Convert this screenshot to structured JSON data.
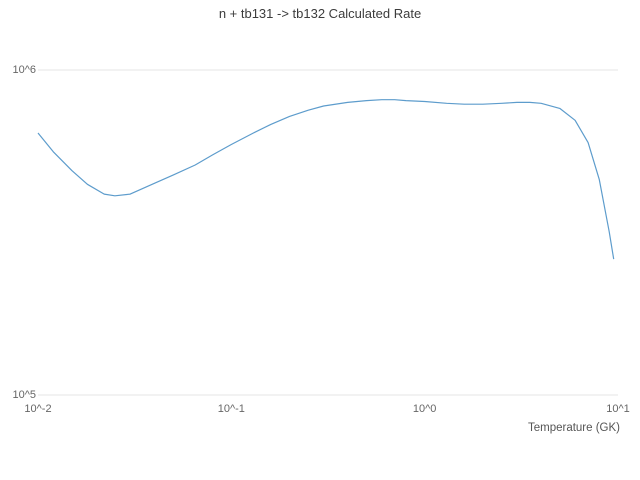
{
  "chart_data": {
    "type": "line",
    "title": "n + tb131 -> tb132 Calculated Rate",
    "xlabel": "Temperature (GK)",
    "ylabel": "",
    "xscale": "log",
    "yscale": "log",
    "xlim": [
      0.01,
      10
    ],
    "ylim": [
      100000,
      1000000
    ],
    "grid": "horizontal",
    "legend": "none",
    "line_color": "#5d9ccc",
    "grid_color": "#e5e5e5",
    "xticks": [
      {
        "value": 0.01,
        "label": "10^-2"
      },
      {
        "value": 0.1,
        "label": "10^-1"
      },
      {
        "value": 1,
        "label": "10^0"
      },
      {
        "value": 10,
        "label": "10^1"
      }
    ],
    "yticks": [
      {
        "value": 100000,
        "label": "10^5"
      },
      {
        "value": 1000000,
        "label": "10^6"
      }
    ],
    "series": [
      {
        "name": "calculated-rate",
        "x": [
          0.01,
          0.012,
          0.015,
          0.018,
          0.022,
          0.025,
          0.03,
          0.04,
          0.05,
          0.065,
          0.08,
          0.1,
          0.13,
          0.16,
          0.2,
          0.25,
          0.3,
          0.4,
          0.5,
          0.6,
          0.7,
          0.8,
          1.0,
          1.3,
          1.6,
          2.0,
          2.5,
          3.0,
          3.5,
          4.0,
          5.0,
          6.0,
          7.0,
          8.0,
          9.0,
          9.5
        ],
        "y": [
          640000,
          560000,
          490000,
          445000,
          415000,
          410000,
          415000,
          448000,
          475000,
          510000,
          548000,
          590000,
          640000,
          680000,
          720000,
          752000,
          775000,
          795000,
          805000,
          810000,
          810000,
          805000,
          800000,
          790000,
          785000,
          785000,
          790000,
          795000,
          795000,
          790000,
          762000,
          700000,
          598000,
          460000,
          318000,
          262000
        ]
      }
    ]
  }
}
